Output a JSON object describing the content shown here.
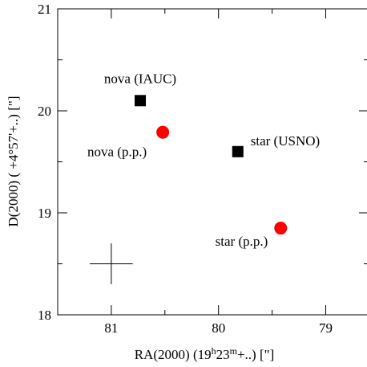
{
  "chart_data": {
    "type": "scatter",
    "xlabel_prefix": "RA(2000) (19",
    "xlabel_h": "h",
    "xlabel_mid": "23",
    "xlabel_m": "m",
    "xlabel_suffix": "+..) [\"]",
    "ylabel": "D(2000) ( +4°57'+..) [\"]",
    "xlim": [
      81.5,
      78.6
    ],
    "ylim": [
      18,
      21
    ],
    "x_reversed": true,
    "x_ticks": [
      81,
      80,
      79
    ],
    "x_tick_labels": [
      "81",
      "80",
      "79"
    ],
    "y_ticks": [
      18,
      19,
      20,
      21
    ],
    "y_tick_labels": [
      "18",
      "19",
      "20",
      "21"
    ],
    "grid": false,
    "series": [
      {
        "marker": "square",
        "color": "#000000",
        "points": [
          {
            "x": 80.73,
            "y": 20.1,
            "label": "nova (IAUC)"
          },
          {
            "x": 79.82,
            "y": 19.6,
            "label": "star (USNO)"
          }
        ]
      },
      {
        "marker": "circle",
        "color": "#ff0000",
        "points": [
          {
            "x": 80.52,
            "y": 19.79,
            "label": "nova (p.p.)"
          },
          {
            "x": 79.42,
            "y": 18.85,
            "label": "star (p.p.)"
          }
        ]
      }
    ],
    "error_cross": {
      "x": 81,
      "y": 18.5,
      "dx": 0.2,
      "dy": 0.2
    }
  }
}
